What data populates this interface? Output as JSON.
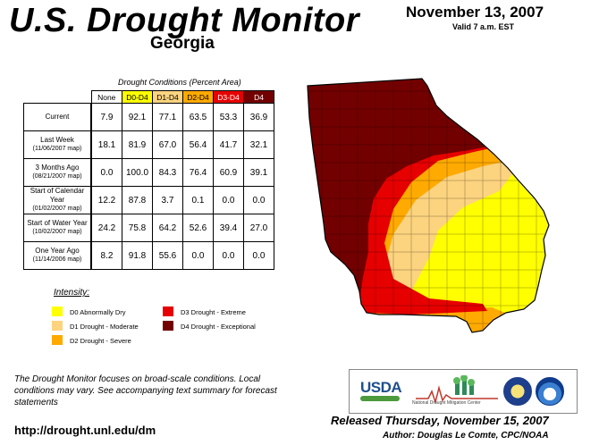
{
  "header": {
    "title": "U.S. Drought Monitor",
    "state": "Georgia",
    "date": "November 13, 2007",
    "valid": "Valid 7 a.m. EST"
  },
  "table": {
    "caption": "Drought Conditions (Percent Area)",
    "columns": [
      "None",
      "D0-D4",
      "D1-D4",
      "D2-D4",
      "D3-D4",
      "D4"
    ],
    "rows": [
      {
        "label": "Current",
        "sub": "",
        "values": [
          "7.9",
          "92.1",
          "77.1",
          "63.5",
          "53.3",
          "36.9"
        ]
      },
      {
        "label": "Last Week",
        "sub": "(11/06/2007 map)",
        "values": [
          "18.1",
          "81.9",
          "67.0",
          "56.4",
          "41.7",
          "32.1"
        ]
      },
      {
        "label": "3 Months Ago",
        "sub": "(08/21/2007 map)",
        "values": [
          "0.0",
          "100.0",
          "84.3",
          "76.4",
          "60.9",
          "39.1"
        ]
      },
      {
        "label": "Start of Calendar Year",
        "sub": "(01/02/2007 map)",
        "values": [
          "12.2",
          "87.8",
          "3.7",
          "0.1",
          "0.0",
          "0.0"
        ]
      },
      {
        "label": "Start of Water Year",
        "sub": "(10/02/2007 map)",
        "values": [
          "24.2",
          "75.8",
          "64.2",
          "52.6",
          "39.4",
          "27.0"
        ]
      },
      {
        "label": "One Year Ago",
        "sub": "(11/14/2006 map)",
        "values": [
          "8.2",
          "91.8",
          "55.6",
          "0.0",
          "0.0",
          "0.0"
        ]
      }
    ]
  },
  "legend": {
    "title": "Intensity:",
    "items": [
      {
        "label": "D0 Abnormally Dry",
        "color": "#ffff00"
      },
      {
        "label": "D1 Drought - Moderate",
        "color": "#fcd37f"
      },
      {
        "label": "D2 Drought - Severe",
        "color": "#ffaa00"
      },
      {
        "label": "D3 Drought - Extreme",
        "color": "#e60000"
      },
      {
        "label": "D4 Drought - Exceptional",
        "color": "#730000"
      }
    ]
  },
  "colors": {
    "none": "#ffffff",
    "d0": "#ffff00",
    "d1": "#fcd37f",
    "d2": "#ffaa00",
    "d3": "#e60000",
    "d4": "#730000"
  },
  "footer": {
    "note": "The Drought Monitor focuses on broad-scale conditions. Local conditions may vary. See accompanying text summary for forecast statements",
    "url": "http://drought.unl.edu/dm",
    "released": "Released Thursday, November 15, 2007",
    "author": "Author: Douglas Le Comte, CPC/NOAA"
  },
  "logos": {
    "usda": "USDA",
    "ndmc": "National Drought Mitigation Center"
  }
}
